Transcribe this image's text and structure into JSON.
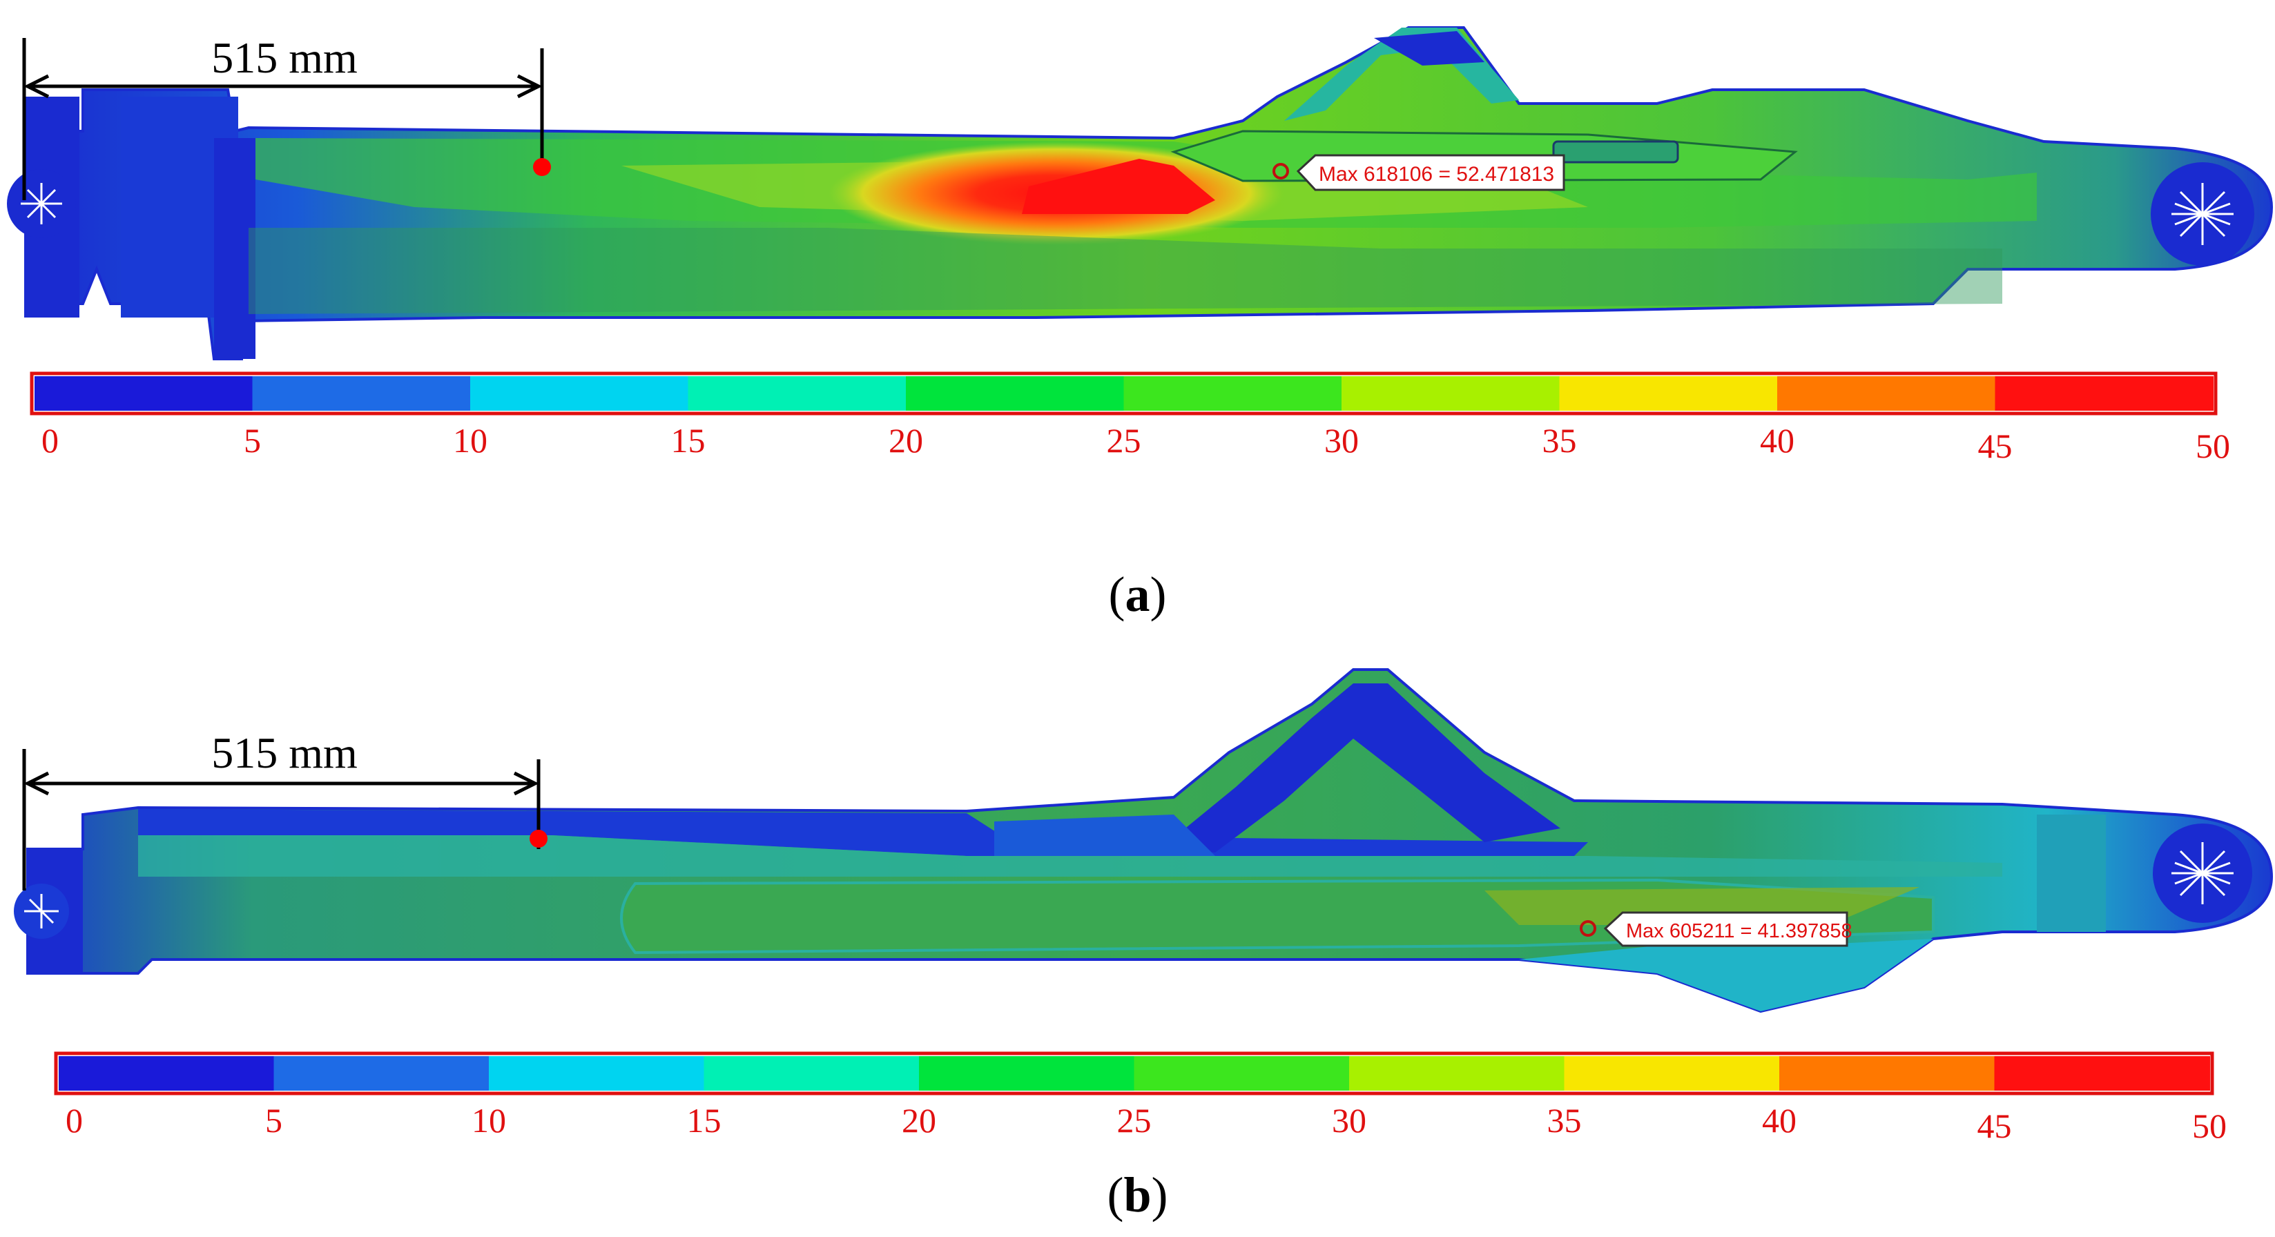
{
  "panels": [
    {
      "id": "a",
      "dimension_label": "515 mm",
      "max_label": "Max 618106 = 52.471813",
      "caption_open": "(",
      "caption_letter": "a",
      "caption_close": ")",
      "scale_ticks": [
        "0",
        "5",
        "10",
        "15",
        "20",
        "25",
        "30",
        "35",
        "40",
        "45",
        "50"
      ]
    },
    {
      "id": "b",
      "dimension_label": "515 mm",
      "max_label": "Max 605211 = 41.397858",
      "caption_open": "(",
      "caption_letter": "b",
      "caption_close": ")",
      "scale_ticks": [
        "0",
        "5",
        "10",
        "15",
        "20",
        "25",
        "30",
        "35",
        "40",
        "45",
        "50"
      ]
    }
  ],
  "colors": {
    "scale": [
      "#1a1ad9",
      "#1e6be6",
      "#00d4f0",
      "#00f0b4",
      "#00e43c",
      "#3ce61e",
      "#a8f000",
      "#f8e600",
      "#ff7800",
      "#ff1010"
    ],
    "tick_text": "#e01010",
    "marker": "#ff0000"
  }
}
